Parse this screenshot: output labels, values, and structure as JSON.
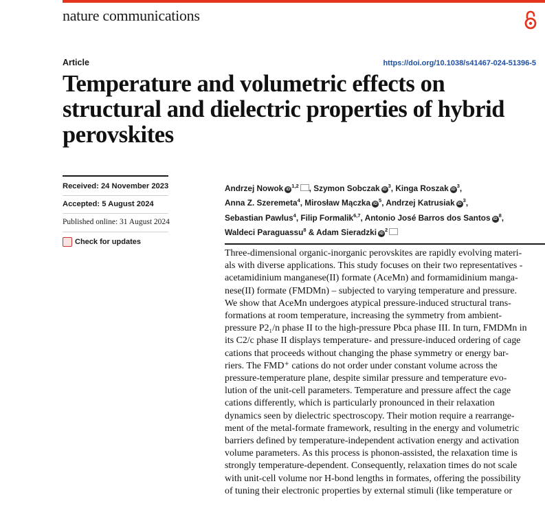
{
  "journal": "nature communications",
  "colors": {
    "accent": "#e4341f",
    "link": "#1f4fa3"
  },
  "icons": {
    "open_access": "open-access-icon",
    "orcid": "orcid-icon",
    "mail": "mail-icon",
    "check_updates": "check-for-updates-icon"
  },
  "article": {
    "type": "Article",
    "doi": "https://doi.org/10.1038/s41467-024-51396-5",
    "title_lines": [
      "Temperature and volumetric effects on",
      "structural and dielectric properties of hybrid",
      "perovskites"
    ]
  },
  "dates": {
    "received": "Received: 24 November 2023",
    "accepted": "Accepted: 5 August 2024",
    "published": "Published online: 31 August 2024"
  },
  "check_updates": "Check for updates",
  "authors": [
    {
      "name": "Andrzej Nowok",
      "sup": "1,2",
      "orcid": true,
      "mail": true,
      "sep": ", "
    },
    {
      "name": "Szymon Sobczak",
      "sup": "3",
      "orcid": true,
      "mail": false,
      "sep": ", "
    },
    {
      "name": "Kinga Roszak",
      "sup": "3",
      "orcid": true,
      "mail": false,
      "sep": ","
    },
    {
      "name": "Anna Z. Szeremeta",
      "sup": "4",
      "orcid": false,
      "mail": false,
      "sep": ", "
    },
    {
      "name": "Mirosław Mączka",
      "sup": "5",
      "orcid": true,
      "mail": false,
      "sep": ", "
    },
    {
      "name": "Andrzej Katrusiak",
      "sup": "3",
      "orcid": true,
      "mail": false,
      "sep": ","
    },
    {
      "name": "Sebastian Pawlus",
      "sup": "4",
      "orcid": false,
      "mail": false,
      "sep": ", "
    },
    {
      "name": "Filip Formalik",
      "sup": "6,7",
      "orcid": false,
      "mail": false,
      "sep": ", "
    },
    {
      "name": "Antonio José Barros dos Santos",
      "sup": "8",
      "orcid": true,
      "mail": false,
      "sep": ","
    },
    {
      "name": "Waldeci Paraguassu",
      "sup": "8",
      "orcid": false,
      "mail": false,
      "sep": " & "
    },
    {
      "name": "Adam Sieradzki",
      "sup": "2",
      "orcid": true,
      "mail": true,
      "sep": ""
    }
  ],
  "author_lines": [
    [
      0,
      1,
      2
    ],
    [
      3,
      4,
      5
    ],
    [
      6,
      7,
      8
    ],
    [
      9,
      10
    ]
  ],
  "abstract_lines": [
    "Three-dimensional organic-inorganic perovskites are rapidly evolving materi-",
    "als with diverse applications. This study focuses on their two representatives -",
    "acetamidinium manganese(II) formate (AceMn) and formamidinium manga-",
    "nese(II) formate (FMDMn) – subjected to varying temperature and pressure.",
    "We show that AceMn undergoes atypical pressure-induced structural trans-",
    "formations at room temperature, increasing the symmetry from ambient-",
    "pressure P2₁/n phase II to the high-pressure Pbca phase III. In turn, FMDMn in",
    "its C2/c phase II displays temperature- and pressure-induced ordering of cage",
    "cations that proceeds without changing the phase symmetry or energy bar-",
    "riers. The FMD⁺ cations do not order under constant volume across the",
    "pressure-temperature plane, despite similar pressure and temperature evo-",
    "lution of the unit-cell parameters. Temperature and pressure affect the cage",
    "cations differently, which is particularly pronounced in their relaxation",
    "dynamics seen by dielectric spectroscopy. Their motion require a rearrange-",
    "ment of the metal-formate framework, resulting in the energy and volumetric",
    "barriers defined by temperature-independent activation energy and activation",
    "volume parameters. As this process is phonon-assisted, the relaxation time is",
    "strongly temperature-dependent. Consequently, relaxation times do not scale",
    "with unit-cell volume nor H-bond lengths in formates, offering the possibility",
    "of tuning their electronic properties by external stimuli (like temperature or"
  ]
}
